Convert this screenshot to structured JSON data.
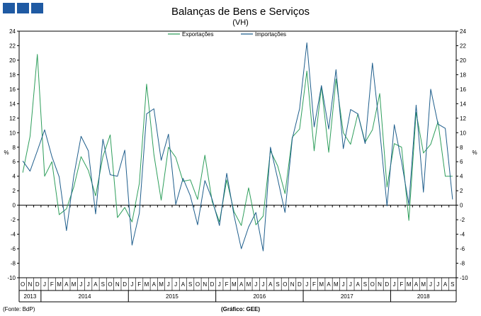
{
  "header": {
    "title": "Balanças de Bens e Serviços",
    "subtitle": "(VH)"
  },
  "footer": {
    "source": "(Fonte: BdP)",
    "credit": "(Gráfico: GEE)"
  },
  "colors": {
    "exportacoes": "#2e9e5b",
    "importacoes": "#1f5e8c",
    "logo": "#1f5aa3"
  },
  "chart_data": {
    "type": "line",
    "title": "Balanças de Bens e Serviços",
    "subtitle": "(VH)",
    "ylabel_left": "%",
    "ylabel_right": "%",
    "ylim": [
      -10,
      24
    ],
    "yticks": [
      -10,
      -8,
      -6,
      -4,
      -2,
      0,
      2,
      4,
      6,
      8,
      10,
      12,
      14,
      16,
      18,
      20,
      22,
      24
    ],
    "grid": false,
    "legend": "top-center",
    "x": [
      "2013-10",
      "2013-11",
      "2013-12",
      "2014-01",
      "2014-02",
      "2014-03",
      "2014-04",
      "2014-05",
      "2014-06",
      "2014-07",
      "2014-08",
      "2014-09",
      "2014-10",
      "2014-11",
      "2014-12",
      "2015-01",
      "2015-02",
      "2015-03",
      "2015-04",
      "2015-05",
      "2015-06",
      "2015-07",
      "2015-08",
      "2015-09",
      "2015-10",
      "2015-11",
      "2015-12",
      "2016-01",
      "2016-02",
      "2016-03",
      "2016-04",
      "2016-05",
      "2016-06",
      "2016-07",
      "2016-08",
      "2016-09",
      "2016-10",
      "2016-11",
      "2016-12",
      "2017-01",
      "2017-02",
      "2017-03",
      "2017-04",
      "2017-05",
      "2017-06",
      "2017-07",
      "2017-08",
      "2017-09",
      "2017-10",
      "2017-11",
      "2017-12",
      "2018-01",
      "2018-02",
      "2018-03",
      "2018-04",
      "2018-05",
      "2018-06",
      "2018-07",
      "2018-08",
      "2018-09"
    ],
    "month_labels": [
      "O",
      "N",
      "D",
      "J",
      "F",
      "M",
      "A",
      "M",
      "J",
      "J",
      "A",
      "S",
      "O",
      "N",
      "D",
      "J",
      "F",
      "M",
      "A",
      "M",
      "J",
      "J",
      "A",
      "S",
      "O",
      "N",
      "D",
      "J",
      "F",
      "M",
      "A",
      "M",
      "J",
      "J",
      "A",
      "S",
      "O",
      "N",
      "D",
      "J",
      "F",
      "M",
      "A",
      "M",
      "J",
      "J",
      "A",
      "S",
      "O",
      "N",
      "D",
      "J",
      "F",
      "M",
      "A",
      "M",
      "J",
      "J",
      "A",
      "S"
    ],
    "years": [
      {
        "label": "2013",
        "start": 0,
        "end": 3
      },
      {
        "label": "2014",
        "start": 3,
        "end": 15
      },
      {
        "label": "2015",
        "start": 15,
        "end": 27
      },
      {
        "label": "2016",
        "start": 27,
        "end": 39
      },
      {
        "label": "2017",
        "start": 39,
        "end": 51
      },
      {
        "label": "2018",
        "start": 51,
        "end": 60
      }
    ],
    "series": [
      {
        "name": "Exportações",
        "color": "#2e9e5b",
        "values": [
          4.5,
          9.5,
          20.8,
          4.0,
          6.0,
          -1.3,
          -0.5,
          2.5,
          6.7,
          4.8,
          1.3,
          6.7,
          9.7,
          -1.7,
          -0.3,
          -2.3,
          3.0,
          16.7,
          7.0,
          0.7,
          8.0,
          6.6,
          3.3,
          3.5,
          0.8,
          6.9,
          0.5,
          -2.3,
          3.5,
          -0.9,
          -2.8,
          2.4,
          -2.7,
          -1.5,
          7.5,
          5.4,
          1.6,
          9.4,
          10.5,
          18.5,
          7.5,
          16.4,
          7.3,
          17.4,
          10.0,
          8.4,
          12.6,
          8.7,
          10.4,
          15.4,
          2.5,
          8.5,
          8.0,
          -2.1,
          12.8,
          7.2,
          8.4,
          11.5,
          4.0,
          4.0
        ]
      },
      {
        "name": "Importações",
        "color": "#1f5e8c",
        "values": [
          6.1,
          4.7,
          7.5,
          10.4,
          6.7,
          3.9,
          -3.5,
          4.0,
          9.5,
          7.5,
          -1.2,
          9.1,
          4.2,
          4.0,
          7.6,
          -5.5,
          -1.1,
          12.6,
          13.3,
          6.2,
          9.8,
          0.1,
          3.7,
          1.3,
          -2.7,
          3.4,
          0.8,
          -2.8,
          4.4,
          -1.4,
          -6.0,
          -3.0,
          -1.0,
          -6.3,
          8.0,
          3.6,
          -1.0,
          9.2,
          13.3,
          22.4,
          10.8,
          16.5,
          10.5,
          18.7,
          7.8,
          13.2,
          12.6,
          8.5,
          19.6,
          10.4,
          -0.1,
          11.1,
          6.0,
          0.1,
          13.8,
          1.8,
          16.0,
          11.2,
          10.6,
          0.8
        ]
      }
    ]
  }
}
